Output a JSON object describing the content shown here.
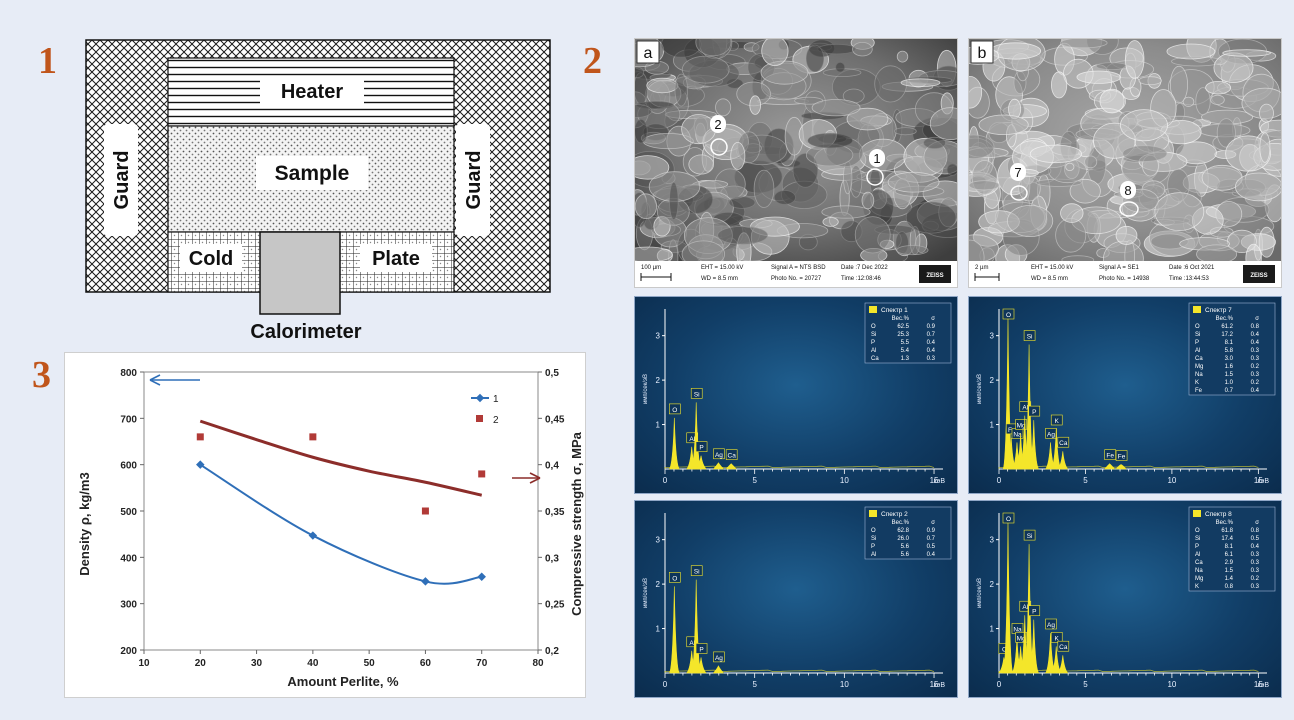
{
  "panels": {
    "p1": "1",
    "p2": "2",
    "p3": "3"
  },
  "calorimeter": {
    "heater": "Heater",
    "sample": "Sample",
    "guard_left": "Guard",
    "guard_right": "Guard",
    "cold": "Cold",
    "plate": "Plate",
    "calorimeter": "Calorimeter"
  },
  "chart_data": {
    "type": "line",
    "x": [
      20,
      40,
      60,
      70
    ],
    "xlabel": "Amount Perlite, %",
    "ylabel": "Density ρ, kg/m3",
    "y2label": "Compressive strength σ, MPa",
    "xlim": [
      10,
      80
    ],
    "xticks": [
      "10",
      "20",
      "30",
      "40",
      "50",
      "60",
      "70",
      "80"
    ],
    "ylim": [
      200,
      800
    ],
    "yticks": [
      "200",
      "300",
      "400",
      "500",
      "600",
      "700",
      "800"
    ],
    "y2lim": [
      0.2,
      0.5
    ],
    "y2ticks": [
      "0,2",
      "0,25",
      "0,3",
      "0,35",
      "0,4",
      "0,45",
      "0,5"
    ],
    "legend_position": "top-right",
    "series": [
      {
        "name": "1",
        "axis": "left",
        "color": "#2f6fb8",
        "values": [
          600,
          447,
          348,
          358
        ]
      },
      {
        "name": "2",
        "axis": "right",
        "color": "#b13a37",
        "values": [
          0.43,
          0.43,
          0.35,
          0.39
        ]
      }
    ],
    "trend_right": {
      "color": "#8c2d2a",
      "x": [
        20,
        30,
        40,
        50,
        60,
        70
      ],
      "values": [
        0.447,
        0.427,
        0.408,
        0.393,
        0.381,
        0.367
      ]
    }
  },
  "sem": {
    "a": {
      "label": "a",
      "scale": "100 µm",
      "eht": "EHT = 15.00 kV",
      "wd": "WD = 8.5 mm",
      "signal": "Signal A = NTS BSD",
      "photo": "Photo No. = 20727",
      "date": "Date :7 Dec 2022",
      "time": "Time :12:08:46",
      "brand": "ZEISS",
      "points": [
        "1",
        "2"
      ]
    },
    "b": {
      "label": "b",
      "scale": "2 µm",
      "eht": "EHT = 15.00 kV",
      "wd": "WD = 8.5 mm",
      "signal": "Signal A = SE1",
      "photo": "Photo No. = 14938",
      "date": "Date :6 Oct 2021",
      "time": "Time :13:44:53",
      "brand": "ZEISS",
      "points": [
        "7",
        "8"
      ]
    }
  },
  "edx_common": {
    "yaxis": "имп/сек/эB",
    "xunit": "кэB",
    "xticks": [
      "0",
      "5",
      "10",
      "15"
    ],
    "yticks": [
      "1",
      "2",
      "3"
    ],
    "header_wt": "Вес.%",
    "header_sigma": "σ"
  },
  "edx": [
    {
      "title": "Спектр 1",
      "elements": [
        [
          "O",
          "62.5",
          "0.9"
        ],
        [
          "Si",
          "25.3",
          "0.7"
        ],
        [
          "P",
          "5.5",
          "0.4"
        ],
        [
          "Al",
          "5.4",
          "0.4"
        ],
        [
          "Ca",
          "1.3",
          "0.3"
        ]
      ],
      "peaks": [
        [
          "O",
          0.52,
          1.15
        ],
        [
          "Al",
          1.49,
          0.5
        ],
        [
          "Si",
          1.74,
          1.5
        ],
        [
          "P",
          2.01,
          0.3
        ],
        [
          "Ag",
          2.98,
          0.14
        ],
        [
          "Ca",
          3.69,
          0.12
        ]
      ]
    },
    {
      "title": "Спектр 7",
      "elements": [
        [
          "O",
          "61.2",
          "0.8"
        ],
        [
          "Si",
          "17.2",
          "0.4"
        ],
        [
          "P",
          "8.1",
          "0.4"
        ],
        [
          "Al",
          "5.8",
          "0.3"
        ],
        [
          "Ca",
          "3.0",
          "0.3"
        ],
        [
          "Mg",
          "1.6",
          "0.2"
        ],
        [
          "Na",
          "1.5",
          "0.3"
        ],
        [
          "K",
          "1.0",
          "0.2"
        ],
        [
          "Fe",
          "0.7",
          "0.4"
        ]
      ],
      "peaks": [
        [
          "O",
          0.52,
          3.4
        ],
        [
          "Fe",
          0.71,
          0.7
        ],
        [
          "Na",
          1.04,
          0.6
        ],
        [
          "Mg",
          1.25,
          0.8
        ],
        [
          "Al",
          1.49,
          1.2
        ],
        [
          "Si",
          1.74,
          2.8
        ],
        [
          "P",
          2.01,
          1.1
        ],
        [
          "Ag",
          2.98,
          0.6
        ],
        [
          "K",
          3.31,
          0.9
        ],
        [
          "Ca",
          3.69,
          0.4
        ],
        [
          "Fe",
          6.4,
          0.12
        ],
        [
          "Fe",
          7.06,
          0.1
        ]
      ]
    },
    {
      "title": "Спектр 2",
      "elements": [
        [
          "O",
          "62.8",
          "0.9"
        ],
        [
          "Si",
          "26.0",
          "0.7"
        ],
        [
          "P",
          "5.6",
          "0.5"
        ],
        [
          "Al",
          "5.6",
          "0.4"
        ]
      ],
      "peaks": [
        [
          "O",
          0.52,
          1.95
        ],
        [
          "Al",
          1.49,
          0.5
        ],
        [
          "Si",
          1.74,
          2.1
        ],
        [
          "P",
          2.01,
          0.35
        ],
        [
          "Ag",
          2.98,
          0.16
        ]
      ]
    },
    {
      "title": "Спектр 8",
      "elements": [
        [
          "O",
          "61.8",
          "0.8"
        ],
        [
          "Si",
          "17.4",
          "0.5"
        ],
        [
          "P",
          "8.1",
          "0.4"
        ],
        [
          "Al",
          "6.1",
          "0.3"
        ],
        [
          "Ca",
          "2.9",
          "0.3"
        ],
        [
          "Na",
          "1.5",
          "0.3"
        ],
        [
          "Mg",
          "1.4",
          "0.2"
        ],
        [
          "K",
          "0.8",
          "0.3"
        ]
      ],
      "peaks": [
        [
          "C",
          0.28,
          0.35
        ],
        [
          "O",
          0.52,
          3.4
        ],
        [
          "Na",
          1.04,
          0.8
        ],
        [
          "Mg",
          1.25,
          0.6
        ],
        [
          "Al",
          1.49,
          1.3
        ],
        [
          "Si",
          1.74,
          2.9
        ],
        [
          "P",
          2.01,
          1.2
        ],
        [
          "Ag",
          2.98,
          0.9
        ],
        [
          "K",
          3.31,
          0.6
        ],
        [
          "Ca",
          3.69,
          0.4
        ]
      ]
    }
  ]
}
